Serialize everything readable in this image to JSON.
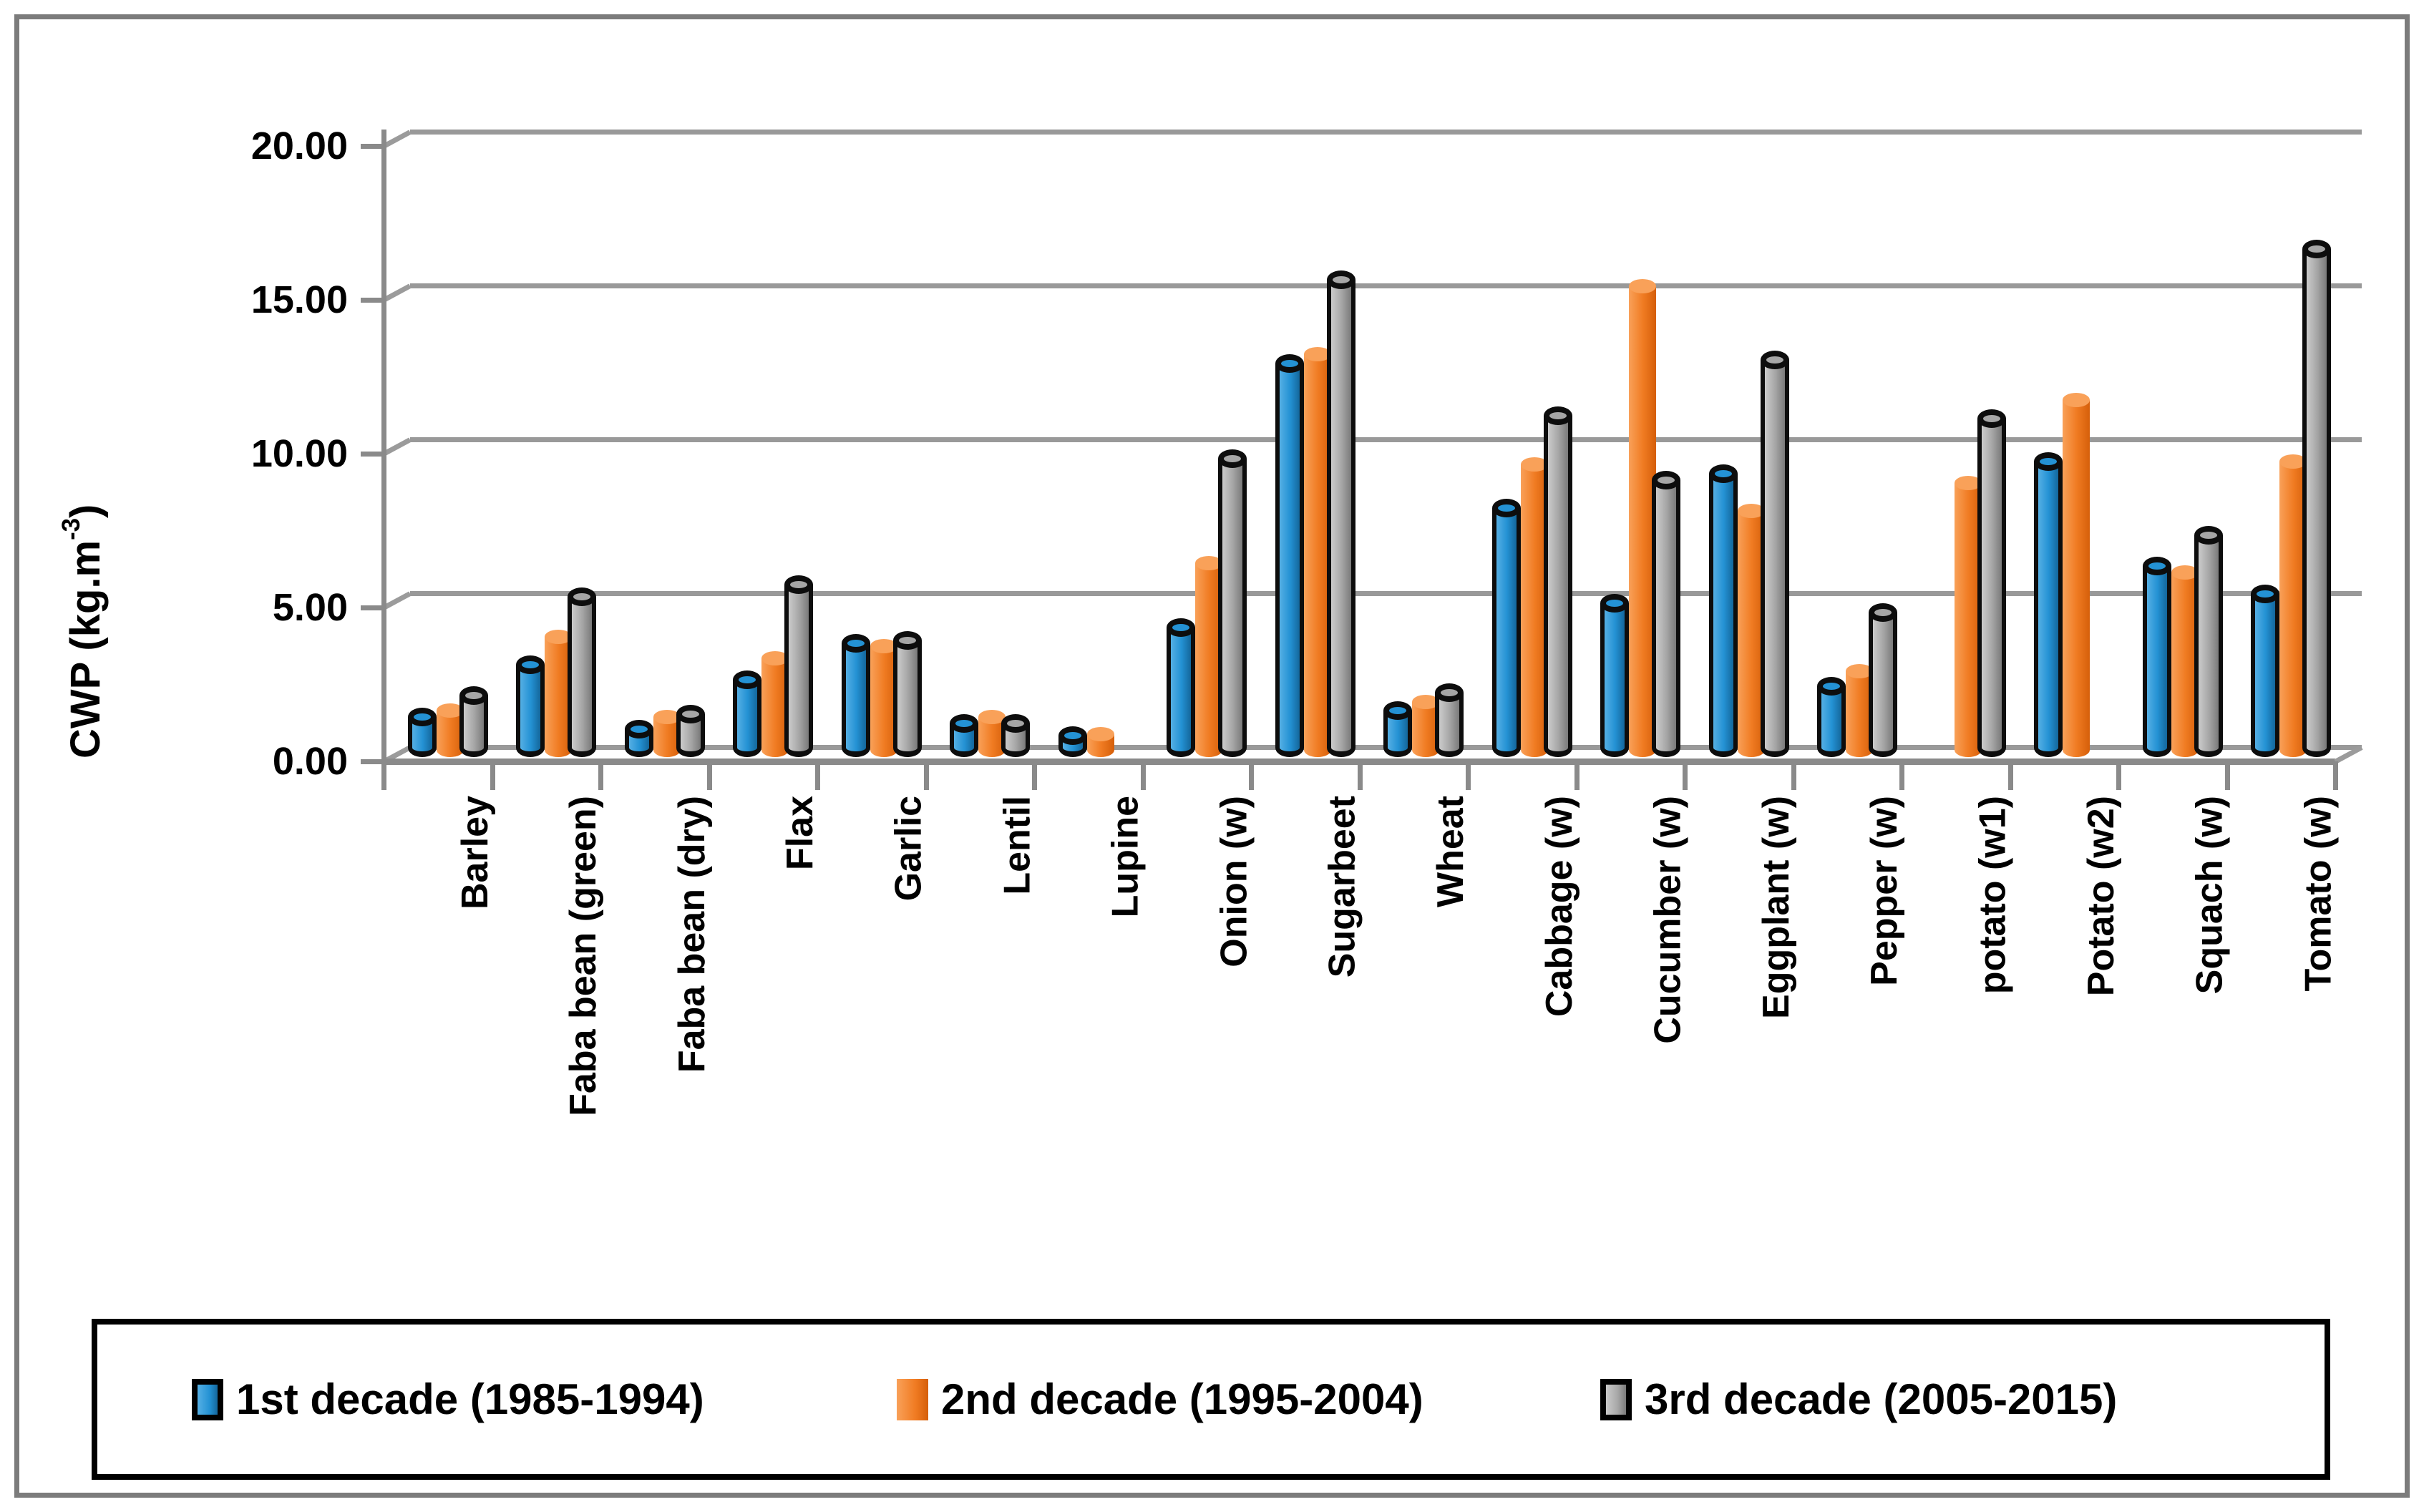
{
  "figure": {
    "background": "#ffffff",
    "border_color": "#7c7c7c",
    "gridline_color": "#999999",
    "axis_color": "#8a8a8a"
  },
  "y_axis": {
    "title_prefix": "CWP (kg.m",
    "title_sup": "-3",
    "title_suffix": ")",
    "ticks": [
      {
        "label": "20.00",
        "value": 20
      },
      {
        "label": "15.00",
        "value": 15
      },
      {
        "label": "10.00",
        "value": 10
      },
      {
        "label": "5.00",
        "value": 5
      },
      {
        "label": "0.00",
        "value": 0
      }
    ]
  },
  "legend": {
    "position": "bottom",
    "border_color": "#000000"
  },
  "chart_data": {
    "type": "bar",
    "style": "3d-cylinder-clustered",
    "title": "",
    "xlabel": "",
    "ylabel": "CWP (kg.m-3)",
    "ylim": [
      0,
      20
    ],
    "grid": true,
    "legend_position": "bottom-box",
    "categories": [
      "Barley",
      "Faba bean (green)",
      "Faba bean (dry)",
      "Flax",
      "Garlic",
      "Lentil",
      "Lupine",
      "Onion (w)",
      "Sugarbeet",
      "Wheat",
      "Cabbage (w)",
      "Cucumber (w)",
      "Eggplant (w)",
      "Pepper (w)",
      "potato (w1)",
      "Potato (w2)",
      "Squach (w)",
      "Tomato (w)"
    ],
    "series": [
      {
        "name": "1st decade (1985-1994)",
        "color": "#2492d4",
        "light": "#55afe4",
        "dark": "#14679c",
        "bordered": true,
        "values": [
          1.3,
          3.0,
          0.9,
          2.5,
          3.7,
          1.1,
          0.7,
          4.2,
          12.8,
          1.5,
          8.1,
          5.0,
          9.2,
          2.3,
          null,
          9.6,
          6.2,
          5.3
        ]
      },
      {
        "name": "2nd decade (1995-2004)",
        "color": "#f07b22",
        "light": "#f9a159",
        "dark": "#d55f0a",
        "bordered": false,
        "values": [
          1.5,
          3.9,
          1.3,
          3.2,
          3.6,
          1.3,
          0.75,
          6.3,
          13.1,
          1.8,
          9.5,
          15.3,
          8.0,
          2.8,
          8.9,
          11.6,
          6.0,
          9.6
        ]
      },
      {
        "name": "3rd decade (2005-2015)",
        "color": "#a6a6a6",
        "light": "#cbcbcb",
        "dark": "#7a7a7a",
        "bordered": true,
        "values": [
          2.0,
          5.2,
          1.4,
          5.6,
          3.8,
          1.1,
          null,
          9.7,
          15.5,
          2.1,
          11.1,
          9.0,
          12.9,
          4.7,
          11.0,
          null,
          7.2,
          16.5
        ]
      }
    ]
  }
}
